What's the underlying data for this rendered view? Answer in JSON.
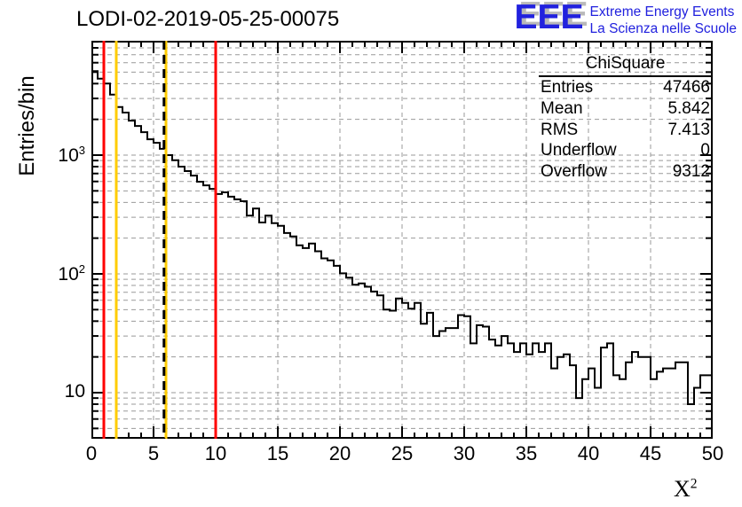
{
  "logo": {
    "acronym": "EEE",
    "tagline1": "Extreme Energy Events",
    "tagline2": "La Scienza nelle Scuole"
  },
  "stats_box": {
    "title": "ChiSquare",
    "rows": [
      {
        "label": "Entries",
        "value": "47466"
      },
      {
        "label": "Mean",
        "value": "5.842"
      },
      {
        "label": "RMS",
        "value": "7.413"
      },
      {
        "label": "Underflow",
        "value": "0"
      },
      {
        "label": "Overflow",
        "value": "9312"
      }
    ]
  },
  "colors": {
    "logo_blue": "#2121de",
    "line_red": "#ff0000",
    "line_yellow": "#ffcc00",
    "grid_gray": "#999999",
    "histogram_black": "#000000"
  },
  "chart_data": {
    "type": "histogram-step-line",
    "title": "LODI-02-2019-05-25-00075",
    "ylabel": "Entries/bin",
    "xlabel_base": "X",
    "xlabel_exp": "2",
    "log_y": true,
    "grid": "dashed gray at every log minor/major line and every 5 on x",
    "xlim": [
      0,
      50
    ],
    "ylim_log": [
      4.1,
      9300
    ],
    "bin_width": 0.5,
    "x_start": 0,
    "x_major_ticks": [
      0,
      5,
      10,
      15,
      20,
      25,
      30,
      35,
      40,
      45,
      50
    ],
    "y_decade_labels": [
      {
        "value": 10,
        "base": "10",
        "exp": ""
      },
      {
        "value": 100,
        "base": "10",
        "exp": "2"
      },
      {
        "value": 1000,
        "base": "10",
        "exp": "3"
      }
    ],
    "vertical_lines": [
      {
        "x": 1,
        "color": "#ff0000",
        "style": "solid",
        "width": 3
      },
      {
        "x": 2,
        "color": "#ffcc00",
        "style": "solid",
        "width": 3
      },
      {
        "x": 6,
        "color": "#ffcc00",
        "style": "solid",
        "width": 3
      },
      {
        "x": 5.842,
        "color": "#000000",
        "style": "dashed",
        "width": 3
      },
      {
        "x": 10,
        "color": "#ff0000",
        "style": "solid",
        "width": 3
      }
    ],
    "values": [
      5100,
      4400,
      4000,
      3230,
      2540,
      2280,
      1950,
      1760,
      1560,
      1360,
      1270,
      1130,
      1000,
      905,
      800,
      734,
      672,
      597,
      557,
      520,
      470,
      486,
      447,
      424,
      409,
      310,
      355,
      271,
      310,
      267,
      254,
      221,
      207,
      174,
      165,
      180,
      155,
      135,
      130,
      117,
      101,
      93,
      81,
      83,
      78,
      71,
      66,
      50,
      49,
      62,
      57,
      51,
      57,
      38,
      47,
      30,
      33,
      35,
      35,
      45,
      44,
      26,
      37,
      36,
      28,
      25,
      30,
      26,
      22,
      26,
      21,
      26,
      22,
      26,
      16,
      20,
      21,
      17,
      9,
      13,
      16,
      11,
      24,
      26,
      14,
      13,
      18,
      22,
      20,
      20,
      13,
      15,
      16,
      16,
      18,
      18,
      8,
      11,
      14,
      14
    ]
  }
}
